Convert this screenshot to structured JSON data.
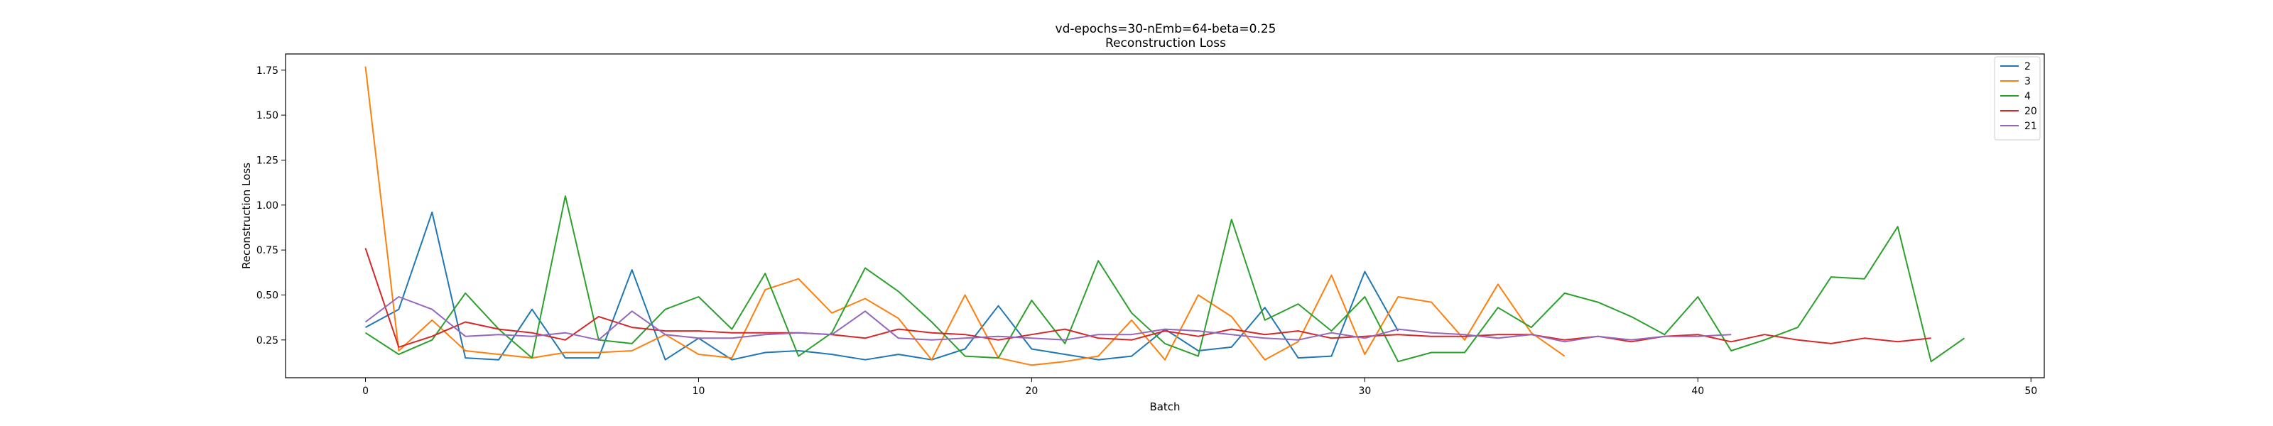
{
  "chart_data": {
    "type": "line",
    "title": "vd-epochs=30-nEmb=64-beta=0.25",
    "subtitle": "Reconstruction Loss",
    "xlabel": "Batch",
    "ylabel": "Reconstruction Loss",
    "xlim": [
      -2.4,
      50.4
    ],
    "ylim": [
      0.04,
      1.84
    ],
    "xticks": [
      0,
      10,
      20,
      30,
      40,
      50
    ],
    "xtick_labels": [
      "0",
      "10",
      "20",
      "30",
      "40",
      "50"
    ],
    "yticks": [
      0.25,
      0.5,
      0.75,
      1.0,
      1.25,
      1.5,
      1.75
    ],
    "ytick_labels": [
      "0.25",
      "0.50",
      "0.75",
      "1.00",
      "1.25",
      "1.50",
      "1.75"
    ],
    "grid": false,
    "legend_position": "top-right",
    "series": [
      {
        "name": "2",
        "color": "#1f77b4",
        "x": [
          0,
          1,
          2,
          3,
          4,
          5,
          6,
          7,
          8,
          9,
          10,
          11,
          12,
          13,
          14,
          15,
          16,
          17,
          18,
          19,
          20,
          21,
          22,
          23,
          24,
          25,
          26,
          27,
          28,
          29,
          30,
          31
        ],
        "values": [
          0.32,
          0.42,
          0.96,
          0.15,
          0.14,
          0.42,
          0.15,
          0.15,
          0.64,
          0.14,
          0.26,
          0.14,
          0.18,
          0.19,
          0.17,
          0.14,
          0.17,
          0.14,
          0.2,
          0.44,
          0.2,
          0.17,
          0.14,
          0.16,
          0.31,
          0.19,
          0.21,
          0.43,
          0.15,
          0.16,
          0.63,
          0.3
        ]
      },
      {
        "name": "3",
        "color": "#ff7f0e",
        "x": [
          0,
          1,
          2,
          3,
          4,
          5,
          6,
          7,
          8,
          9,
          10,
          11,
          12,
          13,
          14,
          15,
          16,
          17,
          18,
          19,
          20,
          21,
          22,
          23,
          24,
          25,
          26,
          27,
          28,
          29,
          30,
          31,
          32,
          33,
          34,
          35,
          36
        ],
        "values": [
          1.77,
          0.19,
          0.36,
          0.19,
          0.17,
          0.15,
          0.18,
          0.18,
          0.19,
          0.28,
          0.17,
          0.15,
          0.53,
          0.59,
          0.4,
          0.48,
          0.37,
          0.14,
          0.5,
          0.15,
          0.11,
          0.13,
          0.16,
          0.36,
          0.14,
          0.5,
          0.38,
          0.14,
          0.24,
          0.61,
          0.17,
          0.49,
          0.46,
          0.25,
          0.56,
          0.29,
          0.16
        ]
      },
      {
        "name": "4",
        "color": "#2ca02c",
        "x": [
          0,
          1,
          2,
          3,
          4,
          5,
          6,
          7,
          8,
          9,
          10,
          11,
          12,
          13,
          14,
          15,
          16,
          17,
          18,
          19,
          20,
          21,
          22,
          23,
          24,
          25,
          26,
          27,
          28,
          29,
          30,
          31,
          32,
          33,
          34,
          35,
          36,
          37,
          38,
          39,
          40,
          41,
          42,
          43,
          44,
          45,
          46,
          47,
          48
        ],
        "values": [
          0.29,
          0.17,
          0.25,
          0.51,
          0.31,
          0.15,
          1.05,
          0.25,
          0.23,
          0.42,
          0.49,
          0.31,
          0.62,
          0.16,
          0.29,
          0.65,
          0.52,
          0.35,
          0.16,
          0.15,
          0.47,
          0.23,
          0.69,
          0.4,
          0.23,
          0.16,
          0.92,
          0.36,
          0.45,
          0.3,
          0.49,
          0.13,
          0.18,
          0.18,
          0.43,
          0.32,
          0.51,
          0.46,
          0.38,
          0.28,
          0.49,
          0.19,
          0.25,
          0.32,
          0.6,
          0.59,
          0.88,
          0.13,
          0.26
        ]
      },
      {
        "name": "20",
        "color": "#d62728",
        "x": [
          0,
          1,
          2,
          3,
          4,
          5,
          6,
          7,
          8,
          9,
          10,
          11,
          12,
          13,
          14,
          15,
          16,
          17,
          18,
          19,
          20,
          21,
          22,
          23,
          24,
          25,
          26,
          27,
          28,
          29,
          30,
          31,
          32,
          33,
          34,
          35,
          36,
          37,
          38,
          39,
          40,
          41,
          42,
          43,
          44,
          45,
          46,
          47
        ],
        "values": [
          0.76,
          0.21,
          0.27,
          0.35,
          0.31,
          0.29,
          0.25,
          0.38,
          0.32,
          0.3,
          0.3,
          0.29,
          0.29,
          0.29,
          0.28,
          0.26,
          0.31,
          0.29,
          0.28,
          0.25,
          0.28,
          0.31,
          0.26,
          0.25,
          0.3,
          0.27,
          0.31,
          0.28,
          0.3,
          0.26,
          0.27,
          0.28,
          0.27,
          0.27,
          0.28,
          0.28,
          0.25,
          0.27,
          0.24,
          0.27,
          0.28,
          0.24,
          0.28,
          0.25,
          0.23,
          0.26,
          0.24,
          0.26
        ]
      },
      {
        "name": "21",
        "color": "#9467bd",
        "x": [
          0,
          1,
          2,
          3,
          4,
          5,
          6,
          7,
          8,
          9,
          10,
          11,
          12,
          13,
          14,
          15,
          16,
          17,
          18,
          19,
          20,
          21,
          22,
          23,
          24,
          25,
          26,
          27,
          28,
          29,
          30,
          31,
          32,
          33,
          34,
          35,
          36,
          37,
          38,
          39,
          40,
          41
        ],
        "values": [
          0.35,
          0.49,
          0.42,
          0.27,
          0.28,
          0.27,
          0.29,
          0.25,
          0.41,
          0.28,
          0.26,
          0.26,
          0.28,
          0.29,
          0.28,
          0.41,
          0.26,
          0.25,
          0.26,
          0.27,
          0.26,
          0.25,
          0.28,
          0.28,
          0.31,
          0.3,
          0.28,
          0.26,
          0.25,
          0.29,
          0.26,
          0.31,
          0.29,
          0.28,
          0.26,
          0.28,
          0.24,
          0.27,
          0.25,
          0.27,
          0.27,
          0.28
        ]
      }
    ]
  }
}
